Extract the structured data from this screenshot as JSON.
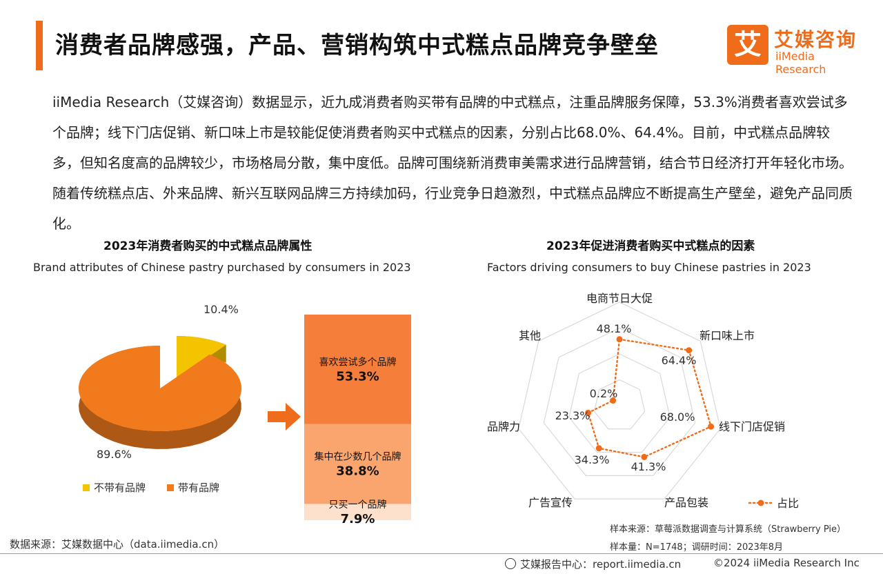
{
  "header": {
    "title": "消费者品牌感强，产品、营销构筑中式糕点品牌竞争壁垒",
    "logo_mark": "艾",
    "logo_cn": "艾媒咨询",
    "logo_en": "iiMedia Research",
    "accent_color": "#ef6c1a"
  },
  "paragraph": "iiMedia Research（艾媒咨询）数据显示，近九成消费者购买带有品牌的中式糕点，注重品牌服务保障，53.3%消费者喜欢尝试多个品牌；线下门店促销、新口味上市是较能促使消费者购买中式糕点的因素，分别占比68.0%、64.4%。目前，中式糕点品牌较多，但知名度高的品牌较少，市场格局分散，集中度低。品牌可围绕新消费审美需求进行品牌营销，结合节日经济打开年轻化市场。随着传统糕点店、外来品牌、新兴互联网品牌三方持续加码，行业竞争日趋激烈，中式糕点品牌应不断提高生产壁垒，避免产品同质化。",
  "chart_data": [
    {
      "type": "pie",
      "title": "2023年消费者购买的中式糕点品牌属性",
      "subtitle": "Brand attributes of Chinese pastry purchased by consumers in 2023",
      "categories": [
        "不带有品牌",
        "带有品牌"
      ],
      "values": [
        10.4,
        89.6
      ],
      "value_labels": [
        "10.4%",
        "89.6%"
      ],
      "colors": [
        "#f5c400",
        "#f07a1c"
      ],
      "legend": "bottom",
      "breakdown": {
        "type": "bar",
        "stacked": true,
        "parent": "带有品牌",
        "categories": [
          "喜欢尝试多个品牌",
          "集中在少数几个品牌",
          "只买一个品牌"
        ],
        "values": [
          53.3,
          38.8,
          7.9
        ],
        "value_labels": [
          "53.3%",
          "38.8%",
          "7.9%"
        ],
        "colors": [
          "#f57f3a",
          "#f9a56d",
          "#fde1cc"
        ]
      }
    },
    {
      "type": "radar",
      "title": "2023年促进消费者购买中式糕点的因素",
      "subtitle": "Factors driving consumers to buy Chinese pastries in 2023",
      "categories": [
        "电商节日大促",
        "新口味上市",
        "线下门店促销",
        "产品包装",
        "广告宣传",
        "品牌力",
        "其他"
      ],
      "values": [
        48.1,
        64.4,
        68.0,
        41.3,
        34.3,
        23.3,
        0.2
      ],
      "value_labels": [
        "48.1%",
        "64.4%",
        "68.0%",
        "41.3%",
        "34.3%",
        "23.3%",
        "0.2%"
      ],
      "series": [
        {
          "name": "占比",
          "values": [
            48.1,
            64.4,
            68.0,
            41.3,
            34.3,
            23.3,
            0.2
          ]
        }
      ],
      "max": 75,
      "grid": true,
      "legend": "bottom-right",
      "color": "#ef6c1a"
    }
  ],
  "sources": {
    "left": "数据来源：艾媒数据中心（data.iimedia.cn）",
    "sample_source": "样本来源：草莓派数据调查与计算系统（Strawberry Pie）",
    "sample_size": "样本量：N=1748；调研时间：2023年8月"
  },
  "footer": {
    "report_center": "艾媒报告中心：report.iimedia.cn",
    "copyright": "©2024  iiMedia Research  Inc"
  }
}
